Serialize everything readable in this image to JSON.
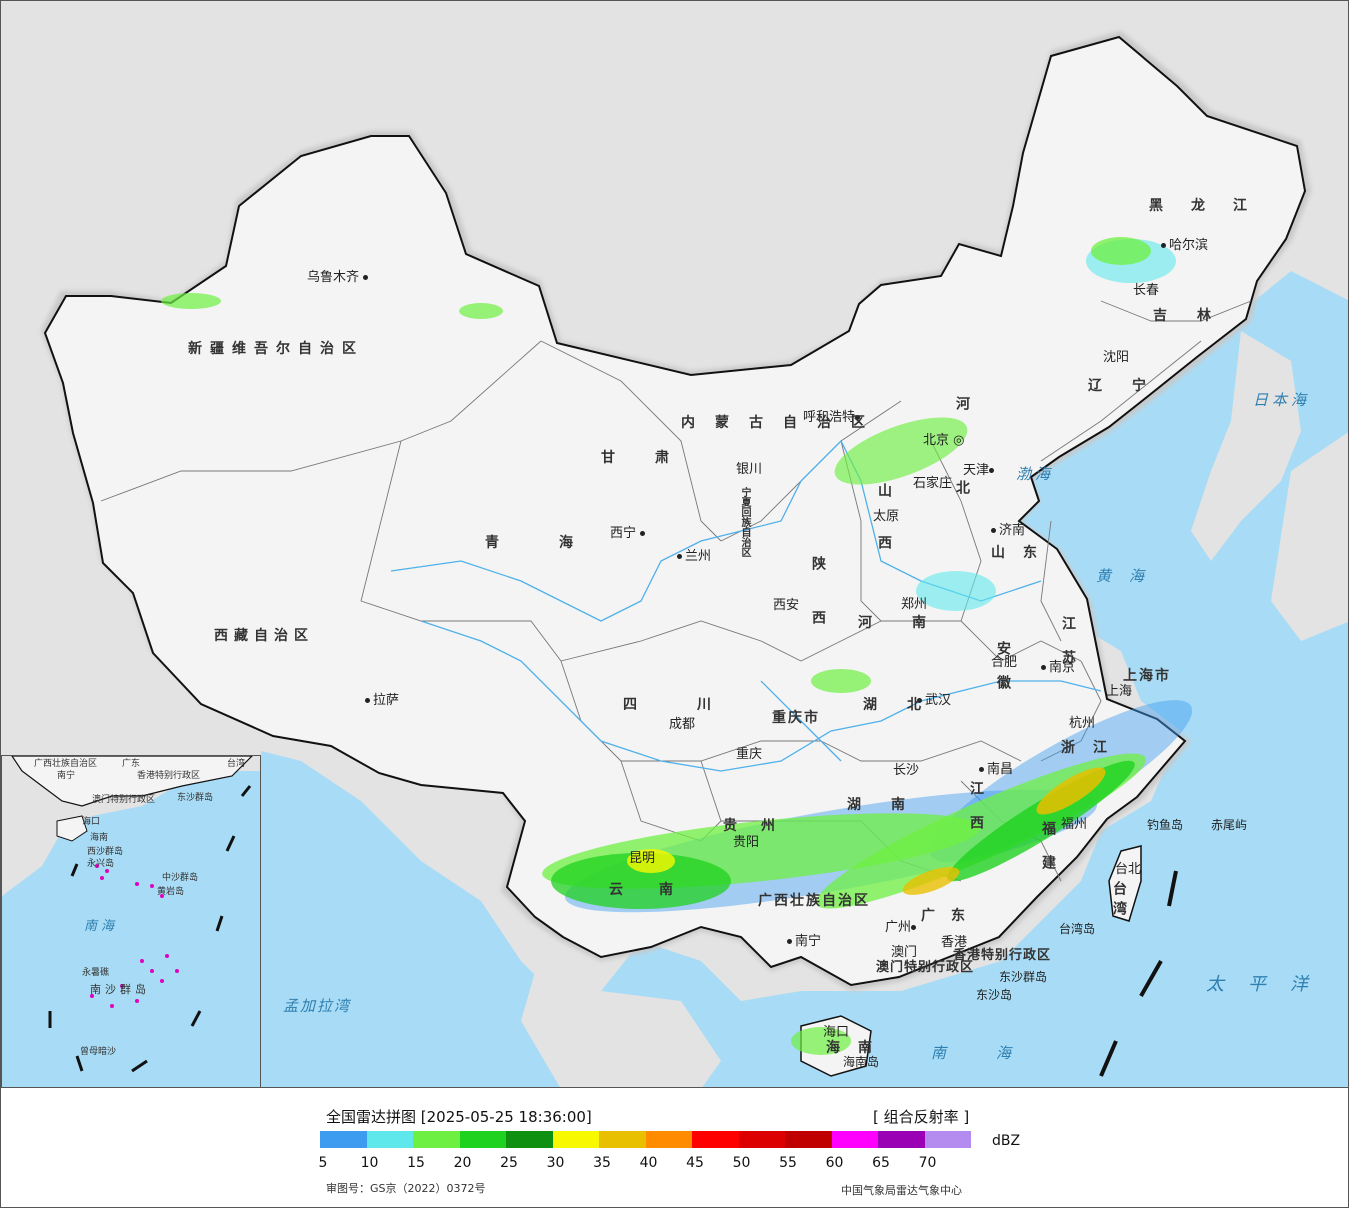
{
  "map": {
    "cities": [
      {
        "key": "urumqi",
        "name": "乌鲁木齐"
      },
      {
        "key": "lhasa",
        "name": "拉萨"
      },
      {
        "key": "xining",
        "name": "西宁"
      },
      {
        "key": "lanzhou",
        "name": "兰州"
      },
      {
        "key": "yinchuan",
        "name": "银川"
      },
      {
        "key": "hohhot",
        "name": "呼和浩特"
      },
      {
        "key": "beijing",
        "name": "北京"
      },
      {
        "key": "tianjin",
        "name": "天津"
      },
      {
        "key": "shijiazhuang",
        "name": "石家庄"
      },
      {
        "key": "taiyuan",
        "name": "太原"
      },
      {
        "key": "jinan",
        "name": "济南"
      },
      {
        "key": "zhengzhou",
        "name": "郑州"
      },
      {
        "key": "xian",
        "name": "西安"
      },
      {
        "key": "chengdu",
        "name": "成都"
      },
      {
        "key": "chongqing",
        "name": "重庆"
      },
      {
        "key": "wuhan",
        "name": "武汉"
      },
      {
        "key": "hefei",
        "name": "合肥"
      },
      {
        "key": "nanjing",
        "name": "南京"
      },
      {
        "key": "shanghai",
        "name": "上海"
      },
      {
        "key": "hangzhou",
        "name": "杭州"
      },
      {
        "key": "nanchang",
        "name": "南昌"
      },
      {
        "key": "changsha",
        "name": "长沙"
      },
      {
        "key": "guiyang",
        "name": "贵阳"
      },
      {
        "key": "kunming",
        "name": "昆明"
      },
      {
        "key": "nanning",
        "name": "南宁"
      },
      {
        "key": "guangzhou",
        "name": "广州"
      },
      {
        "key": "fuzhou",
        "name": "福州"
      },
      {
        "key": "taibei",
        "name": "台北"
      },
      {
        "key": "haikou",
        "name": "海口"
      },
      {
        "key": "shenyang",
        "name": "沈阳"
      },
      {
        "key": "changchun",
        "name": "长春"
      },
      {
        "key": "harbin",
        "name": "哈尔滨"
      },
      {
        "key": "hongkong",
        "name": "香港"
      },
      {
        "key": "macau",
        "name": "澳门"
      }
    ],
    "provinces": [
      {
        "key": "xinjiang",
        "name": "新疆维吾尔自治区"
      },
      {
        "key": "xizang",
        "name": "西藏自治区"
      },
      {
        "key": "qinghai",
        "name": "青海"
      },
      {
        "key": "gansu",
        "name": "甘肃"
      },
      {
        "key": "neimenggu",
        "name": "内蒙古自治区"
      },
      {
        "key": "sichuan",
        "name": "四川"
      },
      {
        "key": "chongqing_shi",
        "name": "重庆市"
      },
      {
        "key": "yunnan",
        "name": "云南"
      },
      {
        "key": "guizhou",
        "name": "贵州"
      },
      {
        "key": "guangxi",
        "name": "广西壮族自治区"
      },
      {
        "key": "guangdong",
        "name": "广东"
      },
      {
        "key": "hainan",
        "name": "海南"
      },
      {
        "key": "hunan",
        "name": "湖南"
      },
      {
        "key": "hubei",
        "name": "湖北"
      },
      {
        "key": "jiangxi",
        "name": "江西"
      },
      {
        "key": "fujian",
        "name": "福建"
      },
      {
        "key": "zhejiang",
        "name": "浙江"
      },
      {
        "key": "anhui",
        "name": "安徽"
      },
      {
        "key": "jiangsu",
        "name": "江苏"
      },
      {
        "key": "shandong",
        "name": "山东"
      },
      {
        "key": "henan",
        "name": "河南"
      },
      {
        "key": "shaanxi",
        "name": "陕西"
      },
      {
        "key": "shanxi",
        "name": "山西"
      },
      {
        "key": "hebei",
        "name": "河北"
      },
      {
        "key": "liaoning",
        "name": "辽宁"
      },
      {
        "key": "jilin",
        "name": "吉林"
      },
      {
        "key": "heilongjiang",
        "name": "黑龙江"
      },
      {
        "key": "ningxia",
        "name": "宁夏回族自治区"
      },
      {
        "key": "shanghai_shi",
        "name": "上海市"
      },
      {
        "key": "taiwan",
        "name": "台湾"
      },
      {
        "key": "hk_sar",
        "name": "香港特别行政区"
      },
      {
        "key": "mo_sar",
        "name": "澳门特别行政区"
      }
    ],
    "seas": [
      {
        "key": "riben",
        "name": "日本海"
      },
      {
        "key": "bohai",
        "name": "渤海"
      },
      {
        "key": "huanghai",
        "name": "黄海"
      },
      {
        "key": "taipingyang",
        "name": "太平洋"
      },
      {
        "key": "nanhai",
        "name": "南海"
      },
      {
        "key": "mengjiala",
        "name": "孟加拉湾"
      }
    ],
    "islands": [
      {
        "key": "diaoyu",
        "name": "钓鱼岛"
      },
      {
        "key": "chiwei",
        "name": "赤尾屿"
      },
      {
        "key": "taiwan_dao",
        "name": "台湾岛"
      },
      {
        "key": "dongsha_qd",
        "name": "东沙群岛"
      },
      {
        "key": "dongsha_dao",
        "name": "东沙岛"
      },
      {
        "key": "hainan_dao",
        "name": "海南岛"
      }
    ],
    "inset_labels": [
      {
        "key": "i_guangxi",
        "name": "广西壮族自治区"
      },
      {
        "key": "i_nanning",
        "name": "南宁"
      },
      {
        "key": "i_guangdong",
        "name": "广东"
      },
      {
        "key": "i_hk",
        "name": "香港特别行政区"
      },
      {
        "key": "i_mo",
        "name": "澳门特别行政区"
      },
      {
        "key": "i_taiwan",
        "name": "台湾"
      },
      {
        "key": "i_dongsha",
        "name": "东沙群岛"
      },
      {
        "key": "i_haikou",
        "name": "海口"
      },
      {
        "key": "i_hainan",
        "name": "海南"
      },
      {
        "key": "i_xisha",
        "name": "西沙群岛"
      },
      {
        "key": "i_yongxing",
        "name": "永兴岛"
      },
      {
        "key": "i_zhongsha",
        "name": "中沙群岛"
      },
      {
        "key": "i_huangyan",
        "name": "黄岩岛"
      },
      {
        "key": "i_nanhai",
        "name": "南海"
      },
      {
        "key": "i_nansha",
        "name": "南沙群岛"
      },
      {
        "key": "i_yongshu",
        "name": "永暑礁"
      },
      {
        "key": "i_zengmu",
        "name": "曾母暗沙"
      }
    ]
  },
  "legend": {
    "title": "全国雷达拼图 [2025-05-25 18:36:00]",
    "product": "[ 组合反射率 ]",
    "unit": "dBZ",
    "colors": [
      "#3d9bf0",
      "#5fe8ec",
      "#6ef042",
      "#1fd21f",
      "#109010",
      "#f8f800",
      "#e8c000",
      "#ff8c00",
      "#ff0000",
      "#dc0000",
      "#c00000",
      "#ff00ff",
      "#9a00b4",
      "#b48cf0"
    ],
    "ticks": [
      "5",
      "10",
      "15",
      "20",
      "25",
      "30",
      "35",
      "40",
      "45",
      "50",
      "55",
      "60",
      "65",
      "70"
    ],
    "review_number": "审图号：GS京（2022）0372号",
    "source": "中国气象局雷达气象中心"
  }
}
